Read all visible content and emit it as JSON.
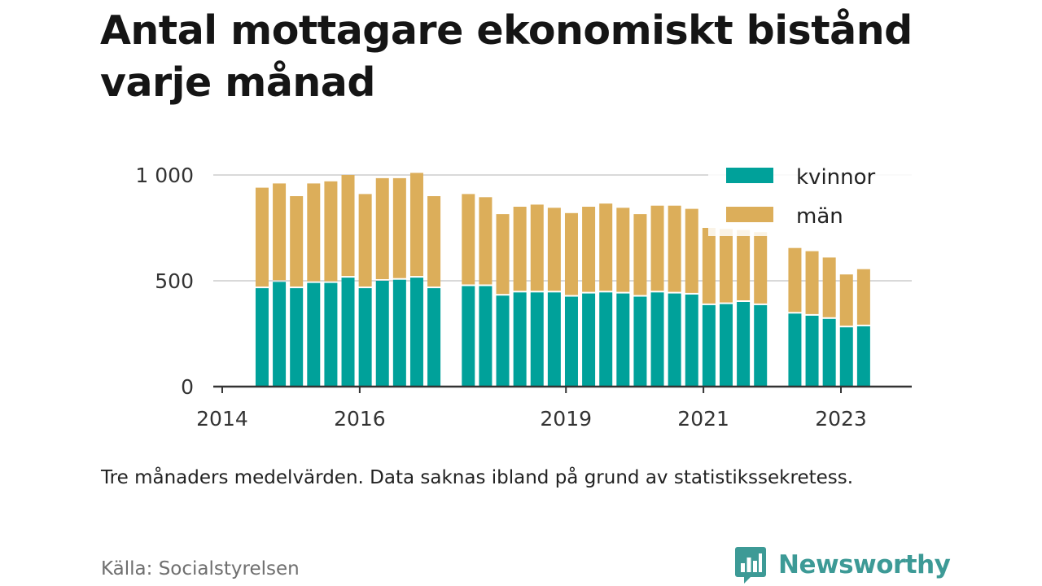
{
  "title": "Antal mottagare ekonomiskt bistånd varje månad",
  "caption": "Tre månaders medelvärden. Data saknas ibland på grund av statistikssekretess.",
  "source": "Källa: Socialstyrelsen",
  "brand": {
    "name": "Newsworthy",
    "icon": "newsworthy-logo-icon",
    "color": "#3d9a96"
  },
  "colors": {
    "kvinnor": "#00a19a",
    "man": "#dcae5a",
    "grid": "#d9d9d9",
    "axis": "#333333"
  },
  "chart_data": {
    "type": "bar",
    "stacked": true,
    "title": "Antal mottagare ekonomiskt bistånd varje månad",
    "xlabel": "",
    "ylabel": "",
    "ylim": [
      0,
      1000
    ],
    "yticks": [
      0,
      500,
      1000
    ],
    "ytick_labels": [
      "0",
      "500",
      "1 000"
    ],
    "xticks": [
      "2014",
      "2016",
      "2019",
      "2021",
      "2023"
    ],
    "xlim": [
      2013.87,
      2024.03
    ],
    "grid": true,
    "legend_position": "top-right",
    "x": [
      2014.58,
      2014.83,
      2015.08,
      2015.33,
      2015.58,
      2015.83,
      2016.08,
      2016.33,
      2016.58,
      2016.83,
      2017.08,
      2017.58,
      2017.83,
      2018.08,
      2018.33,
      2018.58,
      2018.83,
      2019.08,
      2019.33,
      2019.58,
      2019.83,
      2020.08,
      2020.33,
      2020.58,
      2020.83,
      2021.08,
      2021.33,
      2021.58,
      2021.83,
      2022.33,
      2022.58,
      2022.83,
      2023.08,
      2023.33
    ],
    "series": [
      {
        "name": "kvinnor",
        "values": [
          465,
          495,
          465,
          490,
          490,
          515,
          465,
          500,
          505,
          515,
          465,
          475,
          475,
          430,
          445,
          445,
          445,
          425,
          440,
          445,
          440,
          425,
          445,
          440,
          435,
          385,
          390,
          400,
          385,
          345,
          335,
          320,
          280,
          285
        ]
      },
      {
        "name": "män",
        "values": [
          475,
          465,
          435,
          470,
          480,
          485,
          445,
          485,
          480,
          495,
          435,
          435,
          420,
          385,
          405,
          415,
          400,
          395,
          410,
          420,
          405,
          390,
          410,
          415,
          405,
          365,
          355,
          340,
          345,
          310,
          305,
          290,
          250,
          270
        ]
      }
    ]
  }
}
